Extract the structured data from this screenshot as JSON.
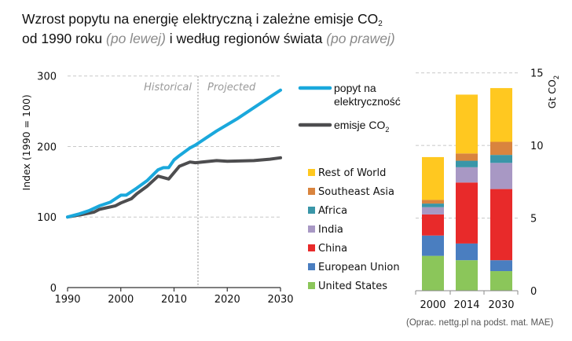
{
  "title": {
    "line1_prefix": "Wzrost popytu na energię elektryczną i zależne emisje CO",
    "line1_sub": "2",
    "line2_a": "od 1990 roku ",
    "line2_muted1": "(po lewej)",
    "line2_b": " i według regionów świata ",
    "line2_muted2": "(po prawej)"
  },
  "source": "(Oprac. nettg.pl na podst. mat. MAE)",
  "chart_data": [
    {
      "type": "line",
      "ylabel": "Index (1990 = 100)",
      "xlabel": "",
      "xlim": [
        1990,
        2030
      ],
      "ylim": [
        0,
        300
      ],
      "xticks": [
        "1990",
        "2000",
        "2010",
        "2020",
        "2030"
      ],
      "yticks": [
        "0",
        "100",
        "200",
        "300"
      ],
      "grid": true,
      "divider_year": 2014.5,
      "annotations": {
        "historical": "Historical",
        "projected": "Projected"
      },
      "legend": {
        "placement": "right",
        "items": [
          {
            "label_line1": "popyt na",
            "label_line2": "elektryczność",
            "color": "#1AA8DC"
          },
          {
            "label": "emisje CO",
            "label_sub": "2",
            "color": "#4D4D4F"
          }
        ]
      },
      "series": [
        {
          "name": "popyt na elektryczność",
          "color": "#1AA8DC",
          "x": [
            1990,
            1992,
            1994,
            1996,
            1998,
            1999,
            2000,
            2001,
            2003,
            2005,
            2007,
            2008,
            2009,
            2010,
            2011,
            2013,
            2014,
            2016,
            2018,
            2020,
            2022,
            2025,
            2028,
            2030
          ],
          "y": [
            100,
            104,
            109,
            116,
            121,
            126,
            131,
            131,
            141,
            152,
            167,
            170,
            170,
            181,
            187,
            198,
            202,
            212,
            222,
            231,
            240,
            255,
            270,
            280
          ]
        },
        {
          "name": "emisje CO2",
          "color": "#4D4D4F",
          "x": [
            1990,
            1993,
            1995,
            1996,
            1999,
            2000,
            2002,
            2003,
            2005,
            2007,
            2009,
            2011,
            2013,
            2014,
            2018,
            2020,
            2025,
            2028,
            2030
          ],
          "y": [
            100,
            104,
            107,
            111,
            116,
            120,
            126,
            133,
            144,
            158,
            154,
            172,
            178,
            177,
            180,
            179,
            180,
            182,
            184
          ]
        }
      ]
    },
    {
      "type": "bar",
      "stacked": true,
      "ylabel": "Gt CO",
      "ylabel_sub": "2",
      "categories": [
        "2000",
        "2014",
        "2030"
      ],
      "ylim": [
        0,
        15
      ],
      "yticks": [
        "0",
        "5",
        "10",
        "15"
      ],
      "grid": true,
      "legend_placement": "left",
      "series": [
        {
          "name": "United States",
          "color": "#8BC65A",
          "values": [
            2.4,
            2.1,
            1.35
          ]
        },
        {
          "name": "European Union",
          "color": "#4A7EC0",
          "values": [
            1.4,
            1.15,
            0.75
          ]
        },
        {
          "name": "China",
          "color": "#E82A2A",
          "values": [
            1.45,
            4.2,
            4.9
          ]
        },
        {
          "name": "India",
          "color": "#A898C4",
          "values": [
            0.5,
            1.05,
            1.8
          ]
        },
        {
          "name": "Africa",
          "color": "#3A96A8",
          "values": [
            0.25,
            0.45,
            0.55
          ]
        },
        {
          "name": "Southeast Asia",
          "color": "#D9843E",
          "values": [
            0.25,
            0.5,
            0.9
          ]
        },
        {
          "name": "Rest of World",
          "color": "#FFC820",
          "values": [
            2.95,
            4.05,
            3.7
          ]
        }
      ]
    }
  ]
}
